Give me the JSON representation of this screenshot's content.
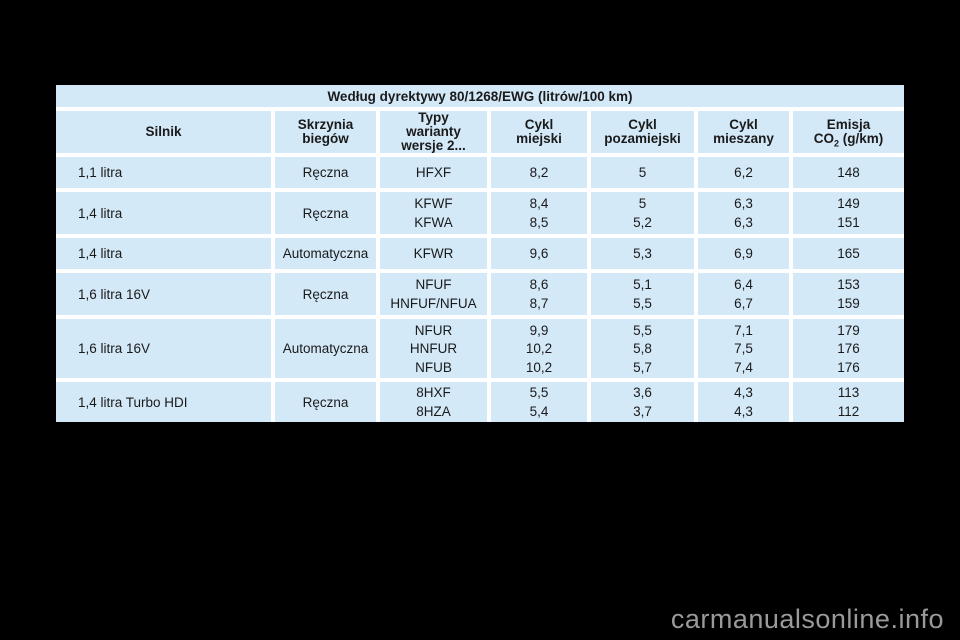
{
  "page": {
    "watermark": "carmanualsonline.info"
  },
  "colors": {
    "background": "#000000",
    "cell": "#d4e9f8",
    "separator": "#ffffff",
    "text": "#1a1a1a",
    "watermark": "#9a9a9a"
  },
  "table": {
    "title": "Według dyrektywy 80/1268/EWG (litrów/100 km)",
    "header": {
      "silnik": "Silnik",
      "skrzynia": [
        "Skrzynia",
        "biegów"
      ],
      "typy": [
        "Typy",
        "warianty",
        "wersje 2..."
      ],
      "miejski": [
        "Cykl",
        "miejski"
      ],
      "pozamiejski": [
        "Cykl",
        "pozamiejski"
      ],
      "mieszany": [
        "Cykl",
        "mieszany"
      ],
      "emisja": {
        "line1": "Emisja",
        "co2_prefix": "CO",
        "co2_sub": "2",
        "co2_suffix": " (g/km)"
      }
    },
    "rows": [
      {
        "silnik": "1,1 litra",
        "skrzynia": "Ręczna",
        "variants": [
          {
            "typ": "HFXF",
            "miejski": "8,2",
            "pozamiejski": "5",
            "mieszany": "6,2",
            "emisja": "148"
          }
        ]
      },
      {
        "silnik": "1,4 litra",
        "skrzynia": "Ręczna",
        "variants": [
          {
            "typ": "KFWF",
            "miejski": "8,4",
            "pozamiejski": "5",
            "mieszany": "6,3",
            "emisja": "149"
          },
          {
            "typ": "KFWA",
            "miejski": "8,5",
            "pozamiejski": "5,2",
            "mieszany": "6,3",
            "emisja": "151"
          }
        ]
      },
      {
        "silnik": "1,4 litra",
        "skrzynia": "Automatyczna",
        "variants": [
          {
            "typ": "KFWR",
            "miejski": "9,6",
            "pozamiejski": "5,3",
            "mieszany": "6,9",
            "emisja": "165"
          }
        ]
      },
      {
        "silnik": "1,6 litra 16V",
        "skrzynia": "Ręczna",
        "variants": [
          {
            "typ": "NFUF",
            "miejski": "8,6",
            "pozamiejski": "5,1",
            "mieszany": "6,4",
            "emisja": "153"
          },
          {
            "typ": "HNFUF/NFUA",
            "miejski": "8,7",
            "pozamiejski": "5,5",
            "mieszany": "6,7",
            "emisja": "159"
          }
        ]
      },
      {
        "silnik": "1,6 litra 16V",
        "skrzynia": "Automatyczna",
        "variants": [
          {
            "typ": "NFUR",
            "miejski": "9,9",
            "pozamiejski": "5,5",
            "mieszany": "7,1",
            "emisja": "179"
          },
          {
            "typ": "HNFUR",
            "miejski": "10,2",
            "pozamiejski": "5,8",
            "mieszany": "7,5",
            "emisja": "176"
          },
          {
            "typ": "NFUB",
            "miejski": "10,2",
            "pozamiejski": "5,7",
            "mieszany": "7,4",
            "emisja": "176"
          }
        ]
      },
      {
        "silnik": "1,4 litra Turbo HDI",
        "skrzynia": "Ręczna",
        "variants": [
          {
            "typ": "8HXF",
            "miejski": "5,5",
            "pozamiejski": "3,6",
            "mieszany": "4,3",
            "emisja": "113"
          },
          {
            "typ": "8HZA",
            "miejski": "5,4",
            "pozamiejski": "3,7",
            "mieszany": "4,3",
            "emisja": "112"
          }
        ]
      }
    ]
  }
}
